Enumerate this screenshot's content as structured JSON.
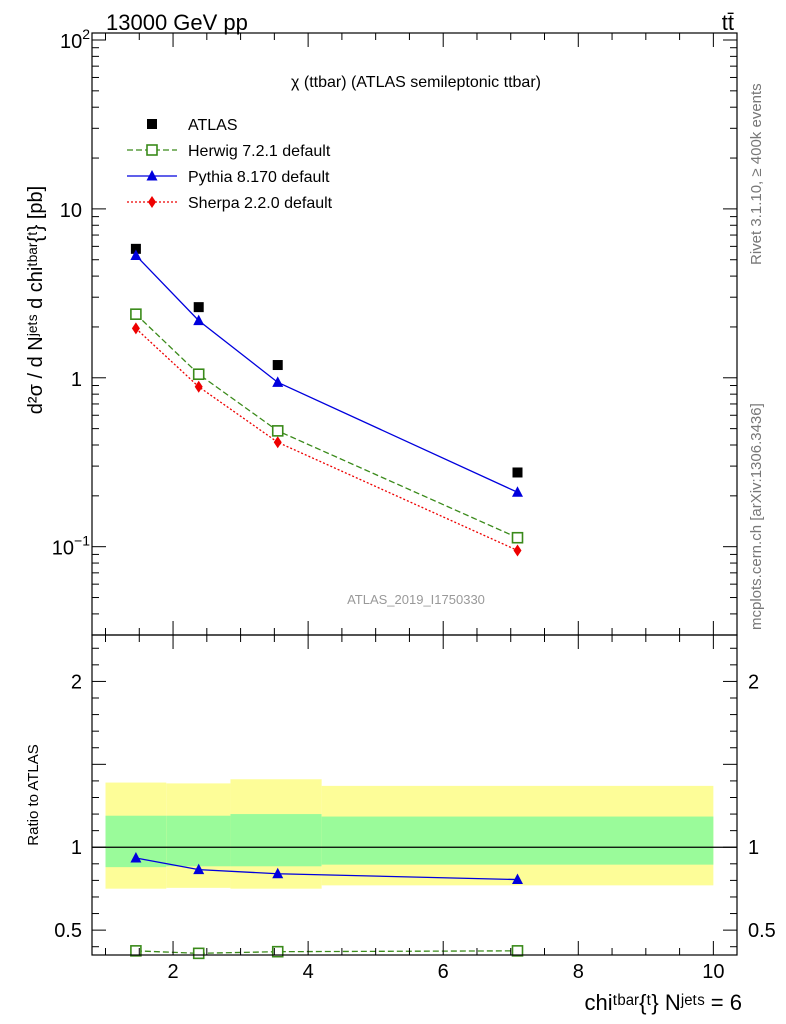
{
  "header": {
    "energy": "13000 GeV pp",
    "process": "tt̄"
  },
  "side_labels": {
    "rivet": "Rivet 3.1.10, ≥ 400k events",
    "mcplots": "mcplots.cern.ch [arXiv:1306.3436]"
  },
  "chart_data": [
    {
      "type": "line",
      "panel": "main",
      "title": "χ (ttbar) (ATLAS semileptonic ttbar)",
      "watermark": "ATLAS_2019_I1750330",
      "ylabel": "d²σ / d Nʲᵉᵗˢ d chiᵗᵇᵃʳ{ᵗ} [pb]",
      "yscale": "log",
      "ylim": [
        0.03,
        110
      ],
      "xlim": [
        0.8,
        10.35
      ],
      "y_ticks": [
        {
          "value": 0.1,
          "base": "10",
          "exp": "−1"
        },
        {
          "value": 1,
          "label": "1"
        },
        {
          "value": 10,
          "label": "10"
        },
        {
          "value": 100,
          "base": "10",
          "exp": "2"
        }
      ],
      "legend_position": "top-left",
      "series": [
        {
          "name": "ATLAS",
          "color": "#000000",
          "marker": "filled-square",
          "line": "none",
          "x": [
            1.45,
            2.38,
            3.55,
            7.1
          ],
          "y": [
            5.8,
            2.62,
            1.19,
            0.275
          ]
        },
        {
          "name": "Herwig 7.2.1 default",
          "color": "#3a8a1a",
          "marker": "open-square",
          "line": "dashed",
          "x": [
            1.45,
            2.38,
            3.55,
            7.1
          ],
          "y": [
            2.38,
            1.05,
            0.485,
            0.113
          ]
        },
        {
          "name": "Pythia 8.170 default",
          "color": "#0000dd",
          "marker": "filled-triangle",
          "line": "solid",
          "x": [
            1.45,
            2.38,
            3.55,
            7.1
          ],
          "y": [
            5.3,
            2.18,
            0.94,
            0.21
          ]
        },
        {
          "name": "Sherpa 2.2.0 default",
          "color": "#ee0000",
          "marker": "filled-diamond",
          "line": "dotted",
          "x": [
            1.45,
            2.38,
            3.55,
            7.1
          ],
          "y": [
            1.96,
            0.885,
            0.415,
            0.095
          ]
        }
      ]
    },
    {
      "type": "line",
      "panel": "ratio",
      "ylabel": "Ratio to ATLAS",
      "xlabel": "chiᵗᵇᵃʳ{ᵗ} Nʲᵉᵗˢ = 6",
      "ylim": [
        0.35,
        2.28
      ],
      "xlim": [
        0.8,
        10.35
      ],
      "y_ticks": [
        0.5,
        1,
        2
      ],
      "x_ticks": [
        2,
        4,
        6,
        8,
        10
      ],
      "reference_line": 1,
      "uncertainty_bands": [
        {
          "x0": 1.0,
          "x1": 1.9,
          "yellow": [
            0.75,
            1.39
          ],
          "green": [
            0.88,
            1.19
          ]
        },
        {
          "x0": 1.9,
          "x1": 2.85,
          "yellow": [
            0.755,
            1.385
          ],
          "green": [
            0.885,
            1.19
          ]
        },
        {
          "x0": 2.85,
          "x1": 4.2,
          "yellow": [
            0.75,
            1.41
          ],
          "green": [
            0.885,
            1.2
          ]
        },
        {
          "x0": 4.2,
          "x1": 10.0,
          "yellow": [
            0.77,
            1.37
          ],
          "green": [
            0.895,
            1.185
          ]
        }
      ],
      "band_colors": {
        "yellow": "#fdfd98",
        "green": "#9afb9a"
      },
      "series": [
        {
          "name": "Pythia 8.170 default",
          "color": "#0000dd",
          "marker": "filled-triangle",
          "line": "solid",
          "x": [
            1.45,
            2.38,
            3.55,
            7.1
          ],
          "y": [
            0.935,
            0.865,
            0.84,
            0.805
          ]
        },
        {
          "name": "Herwig 7.2.1 default",
          "color": "#3a8a1a",
          "marker": "open-square",
          "line": "dashed",
          "x": [
            1.45,
            2.38,
            3.55,
            7.1
          ],
          "y": [
            0.375,
            0.36,
            0.37,
            0.375
          ]
        }
      ]
    }
  ]
}
